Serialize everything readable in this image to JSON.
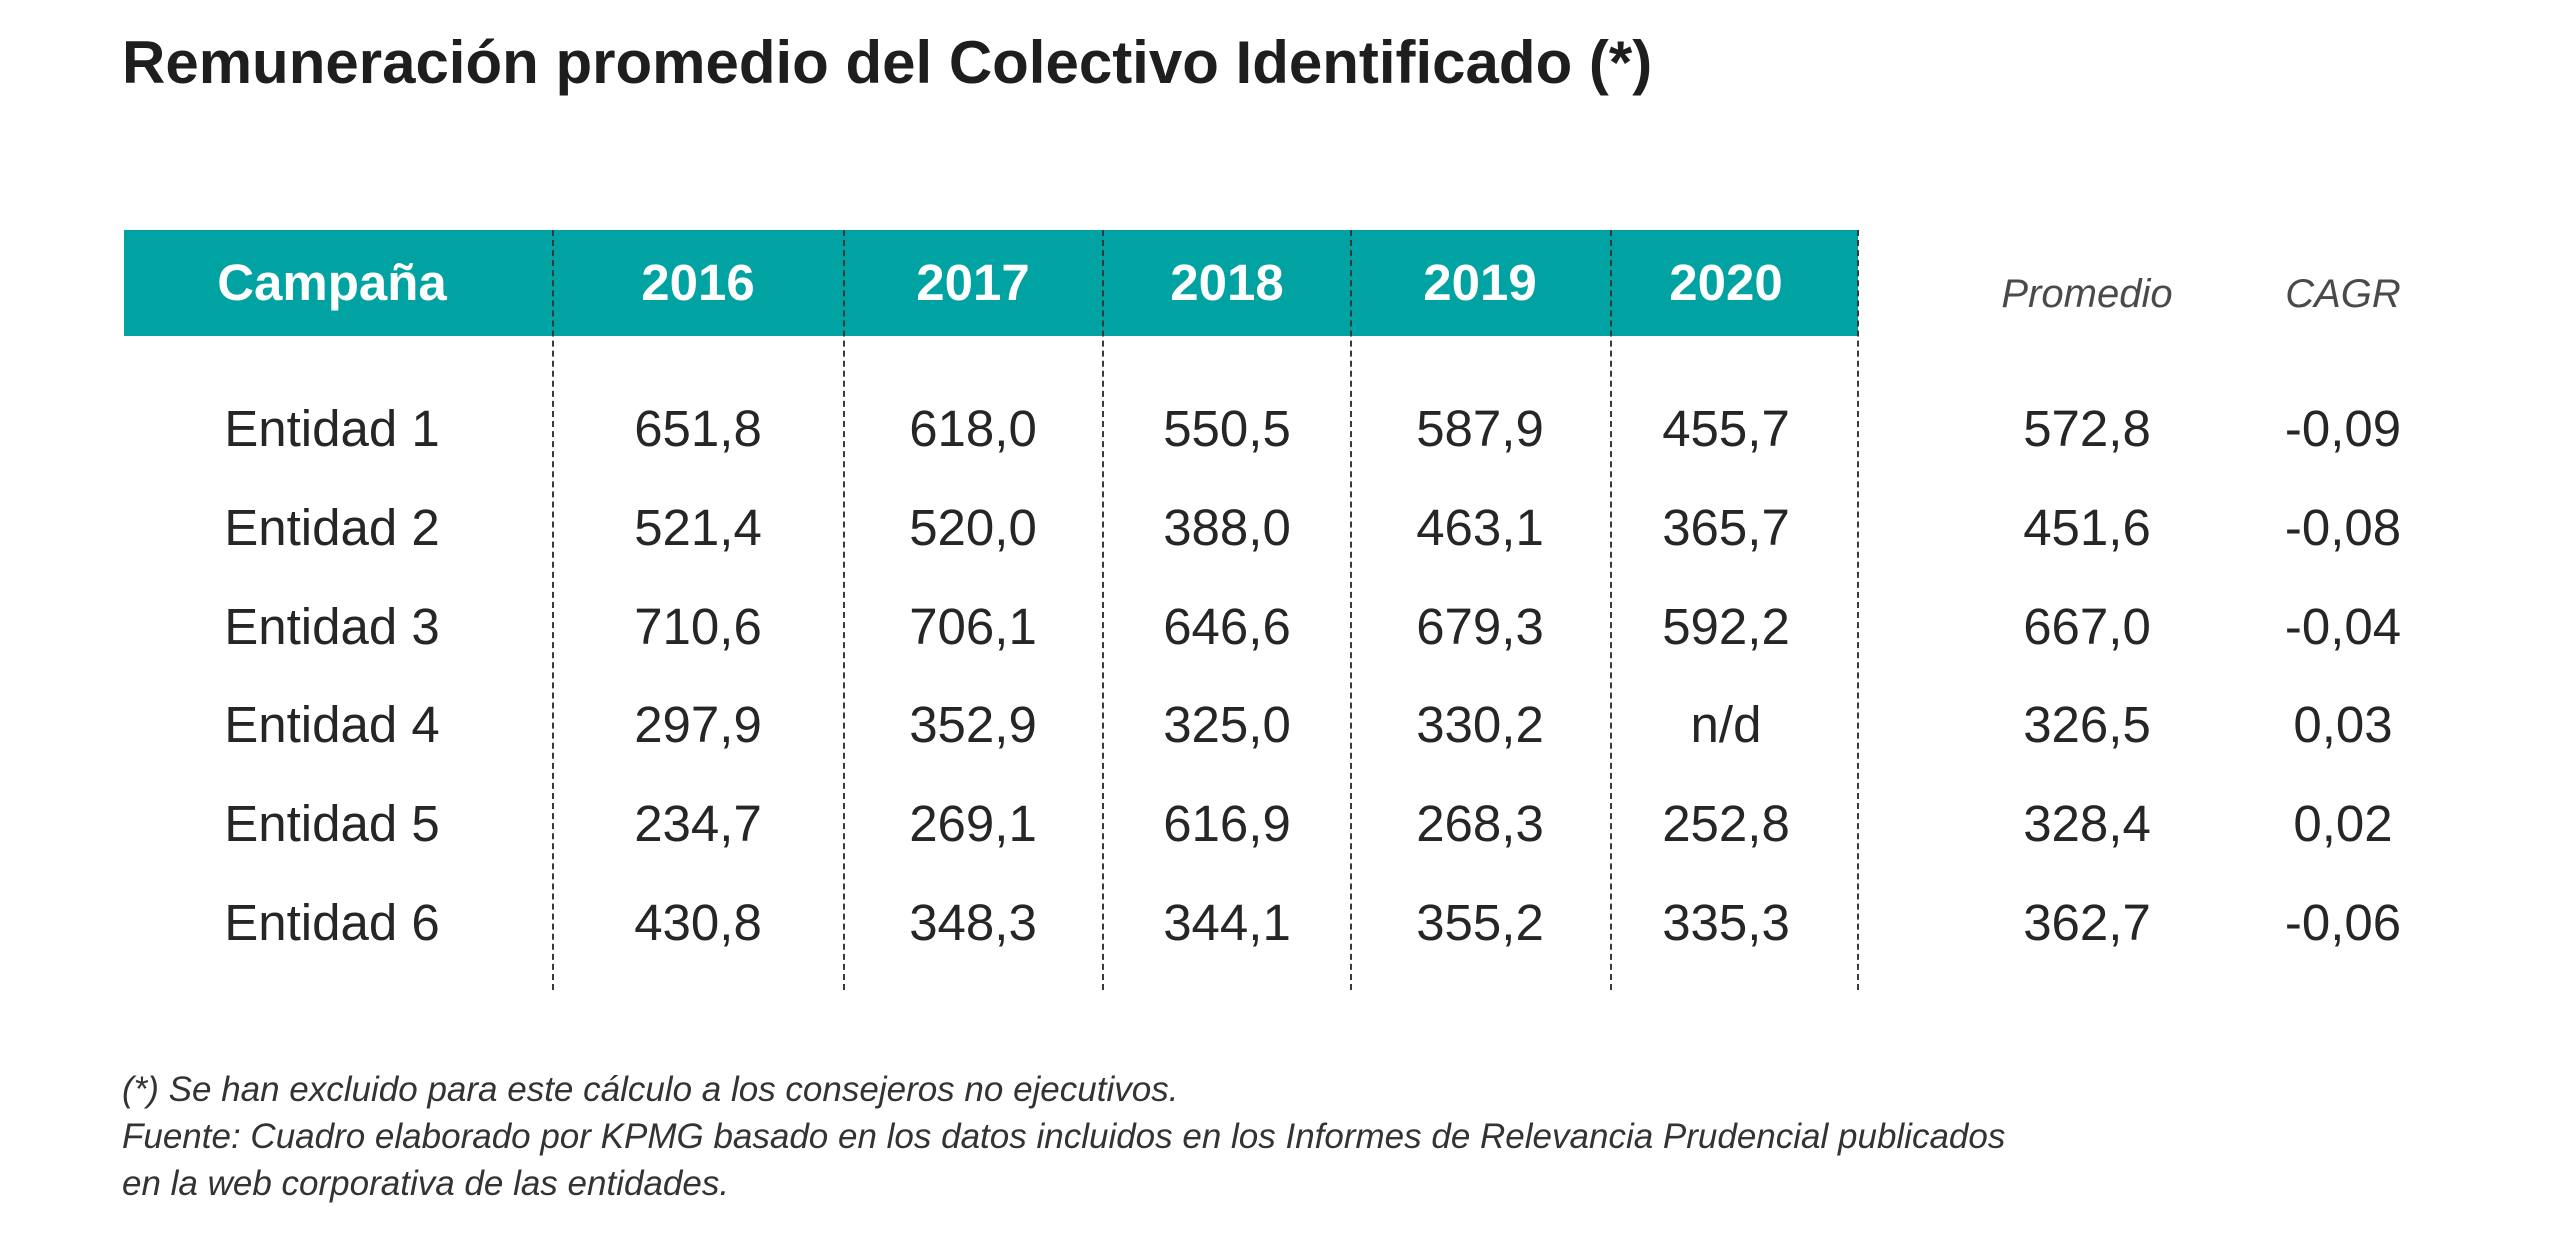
{
  "title": "Remuneración promedio del Colectivo Identificado (*)",
  "colors": {
    "header_band": "#00a3a1",
    "header_text": "#ffffff"
  },
  "table": {
    "header": [
      "Campaña",
      "2016",
      "2017",
      "2018",
      "2019",
      "2020"
    ],
    "side_headers": [
      "Promedio",
      "CAGR"
    ],
    "rows": [
      {
        "label": "Entidad 1",
        "values": [
          "651,8",
          "618,0",
          "550,5",
          "587,9",
          "455,7"
        ],
        "promedio": "572,8",
        "cagr": "-0,09"
      },
      {
        "label": "Entidad 2",
        "values": [
          "521,4",
          "520,0",
          "388,0",
          "463,1",
          "365,7"
        ],
        "promedio": "451,6",
        "cagr": "-0,08"
      },
      {
        "label": "Entidad 3",
        "values": [
          "710,6",
          "706,1",
          "646,6",
          "679,3",
          "592,2"
        ],
        "promedio": "667,0",
        "cagr": "-0,04"
      },
      {
        "label": "Entidad 4",
        "values": [
          "297,9",
          "352,9",
          "325,0",
          "330,2",
          "n/d"
        ],
        "promedio": "326,5",
        "cagr": "0,03"
      },
      {
        "label": "Entidad 5",
        "values": [
          "234,7",
          "269,1",
          "616,9",
          "268,3",
          "252,8"
        ],
        "promedio": "328,4",
        "cagr": "0,02"
      },
      {
        "label": "Entidad 6",
        "values": [
          "430,8",
          "348,3",
          "344,1",
          "355,2",
          "335,3"
        ],
        "promedio": "362,7",
        "cagr": "-0,06"
      }
    ]
  },
  "footnotes": [
    "(*) Se han excluido para este cálculo a los consejeros no ejecutivos.",
    "Fuente: Cuadro elaborado por KPMG basado en los datos incluidos en los Informes de Relevancia Prudencial publicados",
    "en la web corporativa de las entidades."
  ]
}
